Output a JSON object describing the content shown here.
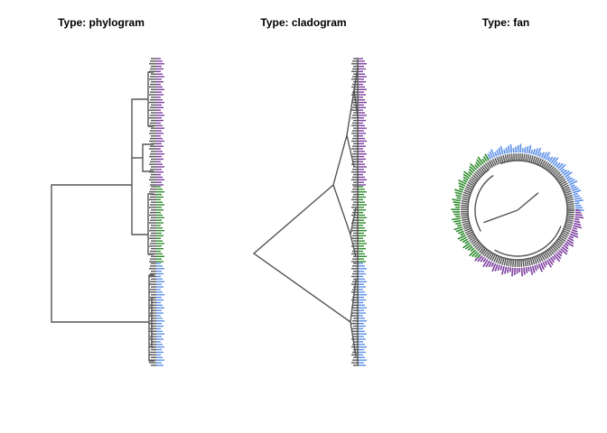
{
  "panels": [
    {
      "title": "Type: phylogram"
    },
    {
      "title": "Type: cladogram"
    },
    {
      "title": "Type: fan"
    }
  ],
  "tree": {
    "branch_color": "#555555",
    "clusters": [
      {
        "color": "#7e3fa0",
        "tip_count": 50
      },
      {
        "color": "#2e8b2e",
        "tip_count": 30
      },
      {
        "color": "#5b8fe8",
        "tip_count": 40
      }
    ]
  }
}
